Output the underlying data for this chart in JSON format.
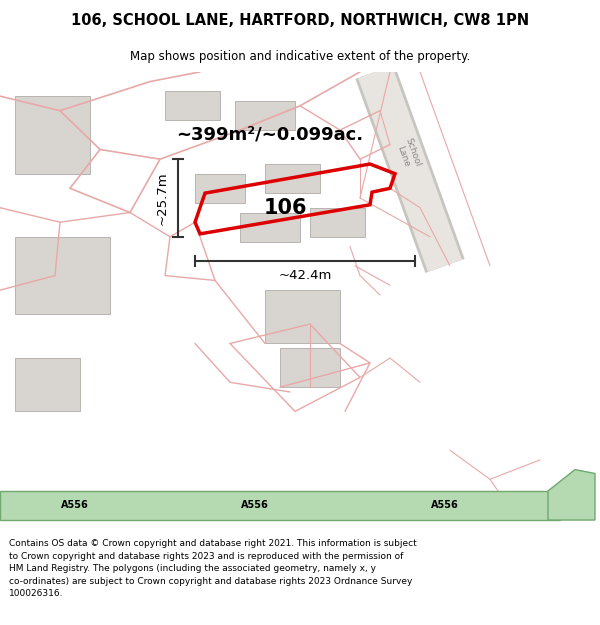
{
  "title_line1": "106, SCHOOL LANE, HARTFORD, NORTHWICH, CW8 1PN",
  "title_line2": "Map shows position and indicative extent of the property.",
  "footer_text": "Contains OS data © Crown copyright and database right 2021. This information is subject\nto Crown copyright and database rights 2023 and is reproduced with the permission of\nHM Land Registry. The polygons (including the associated geometry, namely x, y\nco-ordinates) are subject to Crown copyright and database rights 2023 Ordnance Survey\n100026316.",
  "map_bg": "#f7f5f2",
  "area_text": "~399m²/~0.099ac.",
  "label_106": "106",
  "dim_width": "~42.4m",
  "dim_height": "~25.7m",
  "road_label": "A556",
  "school_lane_label": "School\nLane",
  "red_color": "#dd0000",
  "green_road_fill": "#b5d9b0",
  "green_road_edge": "#70a870",
  "pink_line_color": "#e8a8a8",
  "gray_building_fill": "#d8d4d0",
  "gray_building_edge": "#b8b4b0",
  "road_fill": "#eeebe6",
  "road_edge": "#d8d4d0",
  "dim_color": "#333333",
  "school_lane_road_fill": "#e8e4e0",
  "school_lane_road_edge": "#c8c4c0"
}
